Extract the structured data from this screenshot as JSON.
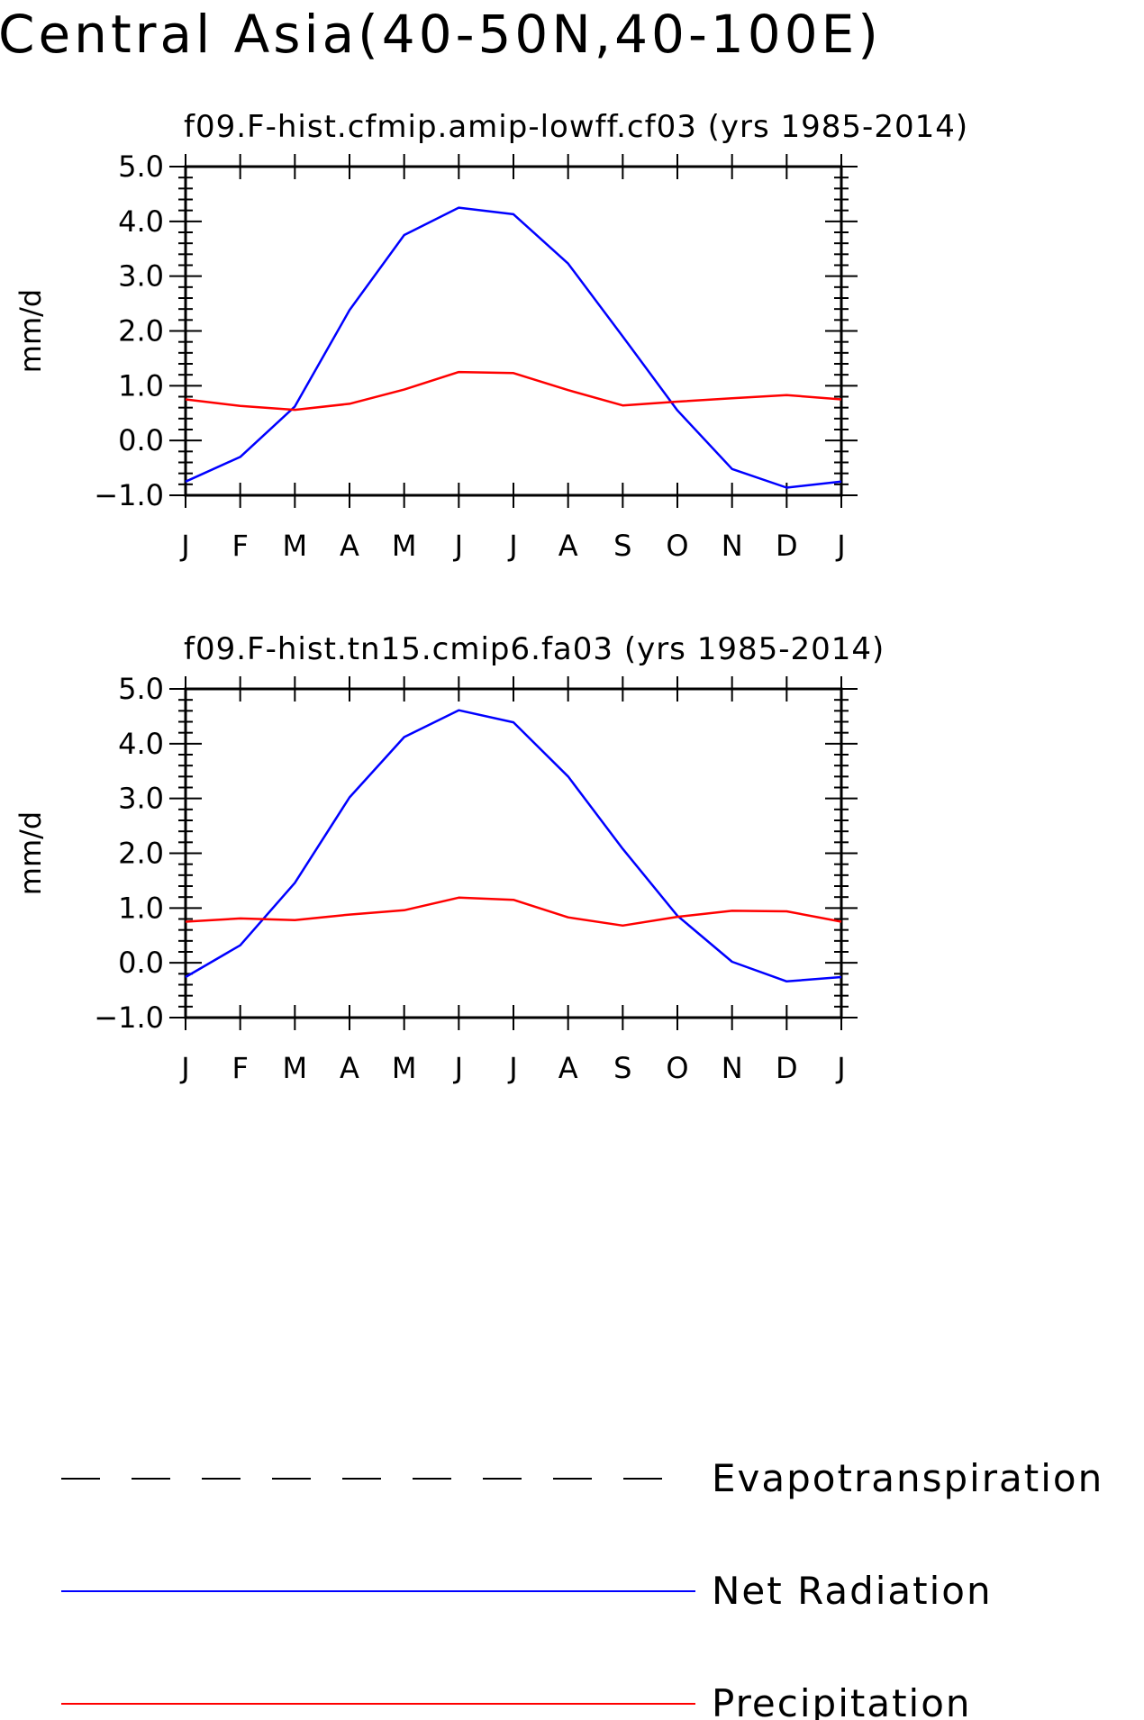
{
  "figure_title": "Central Asia(40-50N,40-100E)",
  "legend": {
    "items": [
      {
        "label": "Evapotranspiration",
        "color": "#000000",
        "style": "dashed"
      },
      {
        "label": "Net Radiation",
        "color": "#0000ff",
        "style": "solid"
      },
      {
        "label": "Precipitation",
        "color": "#ff0000",
        "style": "solid"
      }
    ]
  },
  "chart_data": [
    {
      "type": "line",
      "title": "f09.F-hist.cfmip.amip-lowff.cf03 (yrs 1985-2014)",
      "xlabel": "",
      "ylabel": "mm/d",
      "ylim": [
        -1.0,
        5.0
      ],
      "yticks": [
        "5.0",
        "4.0",
        "3.0",
        "2.0",
        "1.0",
        "0.0",
        "-1.0"
      ],
      "categories": [
        "J",
        "F",
        "M",
        "A",
        "M",
        "J",
        "J",
        "A",
        "S",
        "O",
        "N",
        "D",
        "J"
      ],
      "series": [
        {
          "name": "Net Radiation",
          "color": "#0000ff",
          "values": [
            -0.75,
            -0.3,
            0.62,
            2.38,
            3.75,
            4.25,
            4.13,
            3.23,
            1.9,
            0.55,
            -0.52,
            -0.86,
            -0.75
          ]
        },
        {
          "name": "Precipitation",
          "color": "#ff0000",
          "values": [
            0.75,
            0.63,
            0.56,
            0.67,
            0.93,
            1.25,
            1.23,
            0.92,
            0.64,
            0.71,
            0.77,
            0.83,
            0.75
          ]
        }
      ]
    },
    {
      "type": "line",
      "title": "f09.F-hist.tn15.cmip6.fa03 (yrs 1985-2014)",
      "xlabel": "",
      "ylabel": "mm/d",
      "ylim": [
        -1.0,
        5.0
      ],
      "yticks": [
        "5.0",
        "4.0",
        "3.0",
        "2.0",
        "1.0",
        "0.0",
        "-1.0"
      ],
      "categories": [
        "J",
        "F",
        "M",
        "A",
        "M",
        "J",
        "J",
        "A",
        "S",
        "O",
        "N",
        "D",
        "J"
      ],
      "series": [
        {
          "name": "Net Radiation",
          "color": "#0000ff",
          "values": [
            -0.26,
            0.32,
            1.46,
            3.02,
            4.12,
            4.61,
            4.39,
            3.4,
            2.08,
            0.86,
            0.02,
            -0.34,
            -0.26
          ]
        },
        {
          "name": "Precipitation",
          "color": "#ff0000",
          "values": [
            0.75,
            0.81,
            0.78,
            0.88,
            0.96,
            1.19,
            1.15,
            0.83,
            0.68,
            0.84,
            0.95,
            0.94,
            0.75
          ]
        }
      ]
    }
  ]
}
